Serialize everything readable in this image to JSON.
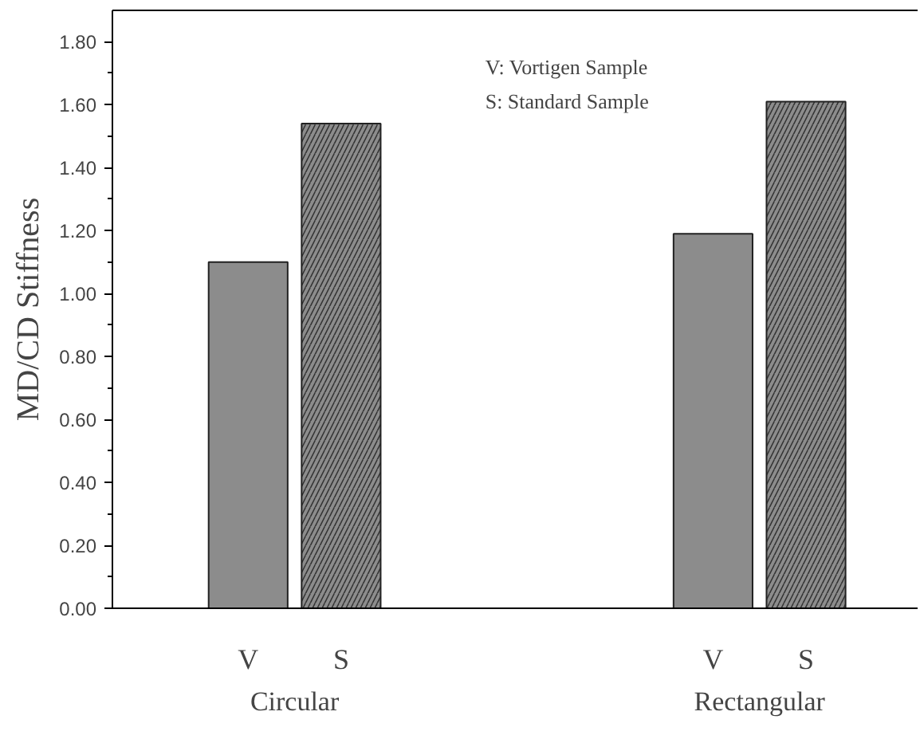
{
  "chart_data": {
    "type": "bar",
    "ylabel": "MD/CD Stiffness",
    "categories": [
      "V",
      "S",
      null,
      null,
      null,
      "V",
      "S"
    ],
    "series": [
      {
        "color": "#8c8c8c",
        "values": [
          1.1,
          null,
          null,
          null,
          null,
          1.19,
          null
        ]
      },
      {
        "color": "#8c8c8c",
        "values": [
          null,
          1.54,
          null,
          null,
          null,
          null,
          1.61
        ]
      }
    ],
    "ylim": [
      0,
      1.9
    ],
    "yticks": [
      {
        "value": 0,
        "label": "0.00"
      },
      {
        "value": 0.2,
        "label": "0.20"
      },
      {
        "value": 0.4,
        "label": "0.40"
      },
      {
        "value": 0.6,
        "label": "0.60"
      },
      {
        "value": 0.8,
        "label": "0.80"
      },
      {
        "value": 1.0,
        "label": "1.00"
      },
      {
        "value": 1.2,
        "label": "1.20"
      },
      {
        "value": 1.4,
        "label": "1.40"
      },
      {
        "value": 1.6,
        "label": "1.60"
      },
      {
        "value": 1.8,
        "label": "1.80"
      }
    ],
    "grid": false,
    "annotations": [
      "V: Vortigen Sample",
      "S: Standard Sample",
      "Circular",
      "Rectangular"
    ]
  }
}
